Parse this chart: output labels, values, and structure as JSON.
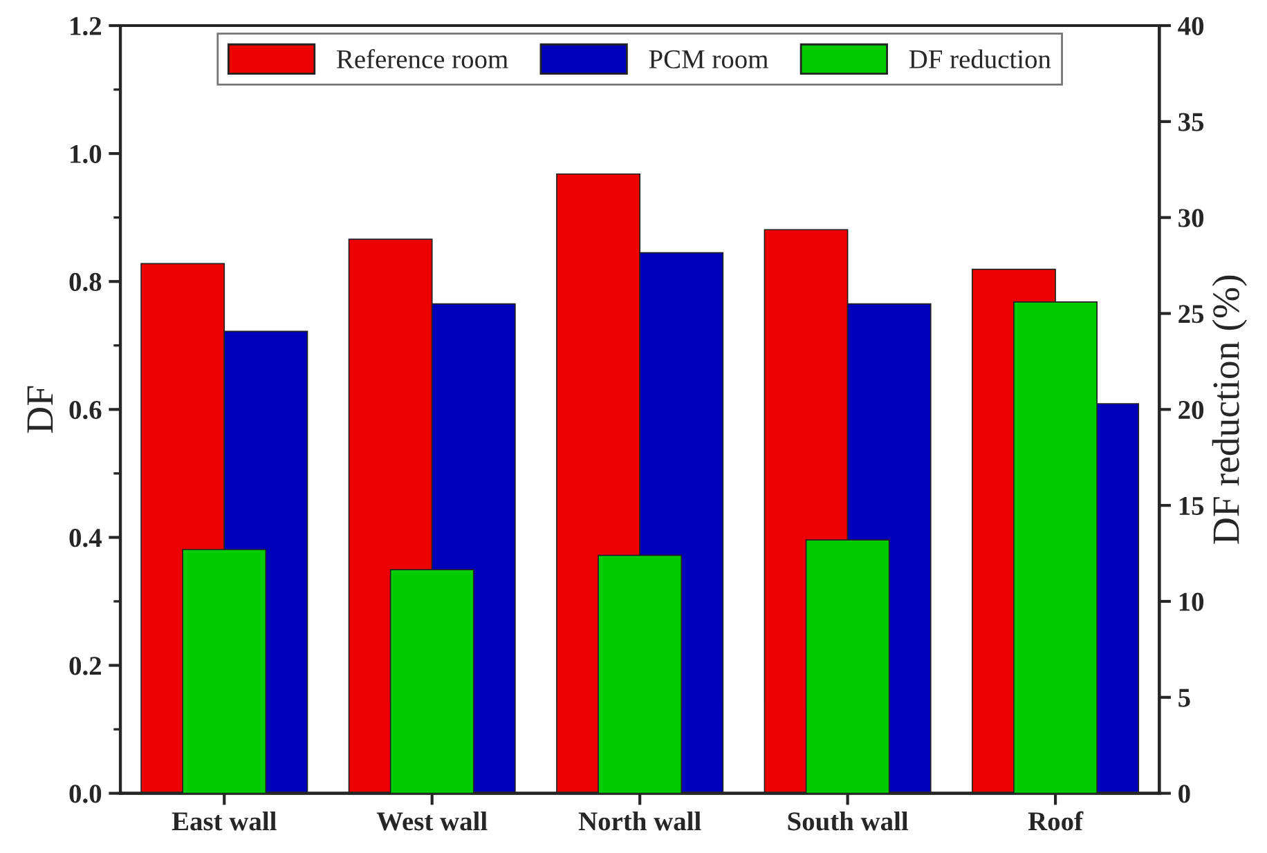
{
  "chart_data": {
    "type": "bar",
    "categories": [
      "East wall",
      "West wall",
      "North wall",
      "South wall",
      "Roof"
    ],
    "ylabel": "DF",
    "y2label": "DF reduction (%)",
    "ylim": [
      0,
      1.2
    ],
    "yticks": [
      {
        "value": 0,
        "label": "0.0"
      },
      {
        "value": 0.2,
        "label": "0.2"
      },
      {
        "value": 0.4,
        "label": "0.4"
      },
      {
        "value": 0.6,
        "label": "0.6"
      },
      {
        "value": 0.8,
        "label": "0.8"
      },
      {
        "value": 1.0,
        "label": "1.0"
      },
      {
        "value": 1.2,
        "label": "1.2"
      }
    ],
    "y2lim": [
      0,
      40
    ],
    "y2ticks": [
      0,
      5,
      10,
      15,
      20,
      25,
      30,
      35,
      40
    ],
    "series": [
      {
        "name": "Reference room",
        "color": "#ee0000",
        "values": [
          0.828,
          0.866,
          0.968,
          0.881,
          0.819
        ]
      },
      {
        "name": "PCM room",
        "color": "#0000bb",
        "values": [
          0.722,
          0.765,
          0.845,
          0.765,
          0.609
        ]
      },
      {
        "name": "DF reduction",
        "color": "#00cc00",
        "axis": "y2",
        "values": [
          12.7,
          11.65,
          12.4,
          13.2,
          25.6
        ]
      }
    ],
    "grid": false,
    "legend": "top"
  }
}
